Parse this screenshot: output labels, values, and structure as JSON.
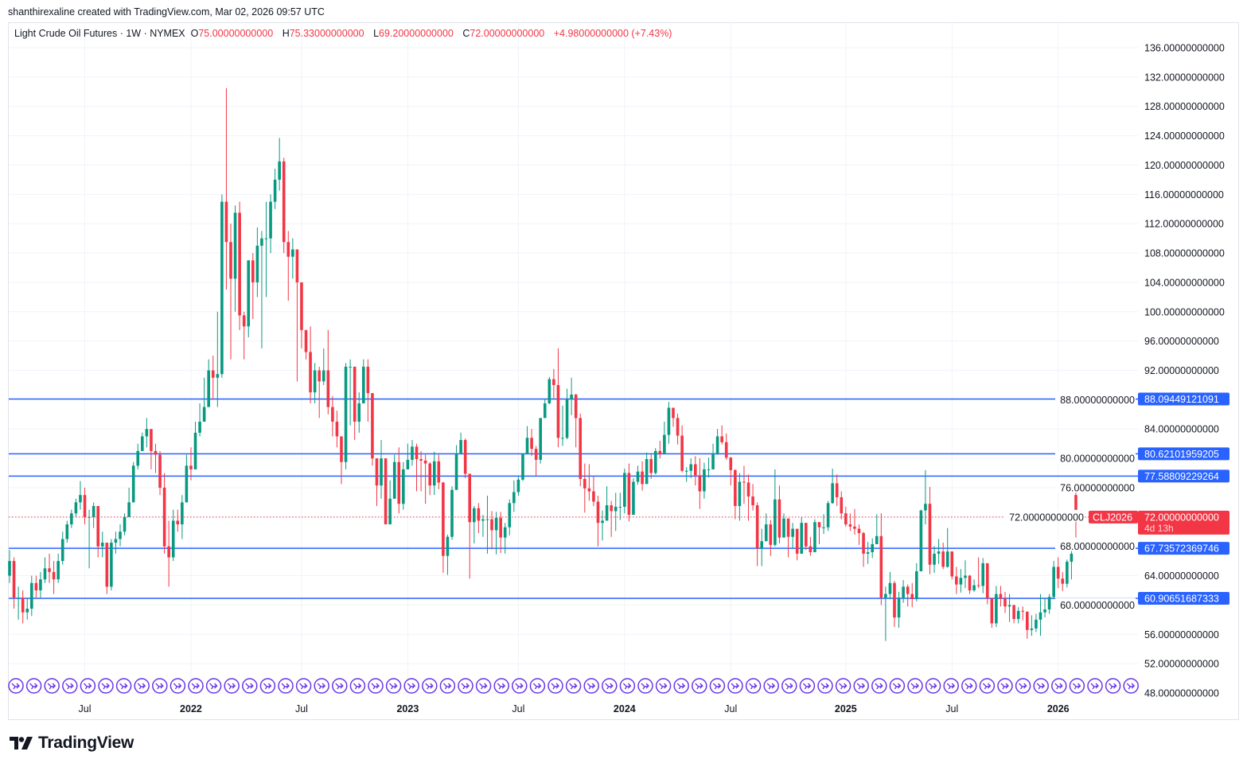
{
  "credit": "shanthirexaline created with TradingView.com, Mar 02, 2026 09:57 UTC",
  "legend": {
    "symbol": "Light Crude Oil Futures · 1W · NYMEX",
    "o_label": "O",
    "o": "75.00000000000",
    "h_label": "H",
    "h": "75.33000000000",
    "l_label": "L",
    "l": "69.20000000000",
    "c_label": "C",
    "c": "72.00000000000",
    "change": "+4.98000000000 (+7.43%)"
  },
  "logo": "TradingView",
  "colors": {
    "up": "#089981",
    "down": "#f23645",
    "level_line": "#2962ff",
    "rollover_icon": "#6a36e6",
    "grid": "#f0f3fa"
  },
  "chart_data": {
    "type": "candlestick",
    "interval": "1W",
    "ylim": [
      48,
      136
    ],
    "y_ticks": [
      "136.00000000000",
      "132.00000000000",
      "128.00000000000",
      "124.00000000000",
      "120.00000000000",
      "116.00000000000",
      "112.00000000000",
      "108.00000000000",
      "104.00000000000",
      "100.00000000000",
      "96.00000000000",
      "92.00000000000",
      "88.00000000000",
      "84.00000000000",
      "80.00000000000",
      "76.00000000000",
      "72.00000000000",
      "68.00000000000",
      "64.00000000000",
      "60.00000000000",
      "56.00000000000",
      "52.00000000000",
      "48.00000000000"
    ],
    "x_ticks": [
      {
        "label": "Jul",
        "week": 17,
        "bold": false
      },
      {
        "label": "2022",
        "week": 41,
        "bold": true
      },
      {
        "label": "Jul",
        "week": 66,
        "bold": false
      },
      {
        "label": "2023",
        "week": 90,
        "bold": true
      },
      {
        "label": "Jul",
        "week": 115,
        "bold": false
      },
      {
        "label": "2024",
        "week": 139,
        "bold": true
      },
      {
        "label": "Jul",
        "week": 163,
        "bold": false
      },
      {
        "label": "2025",
        "week": 189,
        "bold": true
      },
      {
        "label": "Jul",
        "week": 213,
        "bold": false
      },
      {
        "label": "2026",
        "week": 237,
        "bold": true
      }
    ],
    "horizontal_levels": [
      "88.09449121091",
      "80.62101959205",
      "77.58809229264",
      "67.73572369746",
      "60.90651687333"
    ],
    "last_price": {
      "value": "72.00000000000",
      "countdown": "4d 13h",
      "contract": "CLJ2026"
    },
    "candles_ohlc": [
      [
        64,
        67.5,
        63,
        66
      ],
      [
        66,
        66.5,
        59.5,
        61
      ],
      [
        61,
        62.5,
        58,
        61
      ],
      [
        61,
        62,
        57.5,
        59
      ],
      [
        59,
        61,
        58,
        59.5
      ],
      [
        59.5,
        64,
        58.5,
        63
      ],
      [
        63,
        64,
        61,
        62
      ],
      [
        62,
        64.5,
        61,
        63.5
      ],
      [
        63.5,
        66.5,
        63,
        65
      ],
      [
        65,
        67,
        63,
        64.5
      ],
      [
        64.5,
        66,
        61.5,
        63.5
      ],
      [
        63.5,
        67,
        63,
        66
      ],
      [
        66,
        70,
        65.5,
        69
      ],
      [
        69,
        71.5,
        68.5,
        71
      ],
      [
        71,
        73,
        70.5,
        72.5
      ],
      [
        72.5,
        74.5,
        72,
        74
      ],
      [
        74,
        76.9,
        73,
        75
      ],
      [
        75,
        76,
        71,
        72
      ],
      [
        72,
        73,
        65,
        72
      ],
      [
        72,
        74,
        70.5,
        73.5
      ],
      [
        73.5,
        73.5,
        66.5,
        68
      ],
      [
        68,
        70,
        66.5,
        68.5
      ],
      [
        68.5,
        68.5,
        61.5,
        62.5
      ],
      [
        62.5,
        69,
        62,
        68.5
      ],
      [
        68.5,
        70,
        67,
        69
      ],
      [
        69,
        71,
        68,
        70
      ],
      [
        70,
        72.5,
        69.5,
        72
      ],
      [
        72,
        76,
        72,
        74
      ],
      [
        74,
        79.5,
        74,
        79
      ],
      [
        79,
        82,
        78.5,
        81
      ],
      [
        81,
        83.5,
        81,
        83
      ],
      [
        83,
        85.5,
        81.5,
        84
      ],
      [
        84,
        84,
        78.5,
        81
      ],
      [
        81,
        82,
        78,
        80.5
      ],
      [
        80.5,
        81,
        75,
        76
      ],
      [
        76,
        78,
        67,
        68
      ],
      [
        68,
        71.5,
        62.5,
        66.5
      ],
      [
        66.5,
        73,
        66,
        71.5
      ],
      [
        71.5,
        73,
        70,
        71
      ],
      [
        71,
        75,
        69,
        74
      ],
      [
        74,
        80.5,
        74,
        79
      ],
      [
        79,
        81.5,
        77,
        78.5
      ],
      [
        78.5,
        85,
        79,
        83.5
      ],
      [
        83.5,
        87.5,
        83,
        85
      ],
      [
        85,
        91,
        86,
        87
      ],
      [
        87,
        93.5,
        87,
        92
      ],
      [
        92,
        94,
        88,
        91
      ],
      [
        91,
        100,
        87,
        91.5
      ],
      [
        91.5,
        116,
        91,
        115
      ],
      [
        115,
        130.5,
        103,
        109.5
      ],
      [
        109.5,
        112,
        93.5,
        104.5
      ],
      [
        104.5,
        114.5,
        100,
        113.5
      ],
      [
        113.5,
        115,
        97.5,
        99.5
      ],
      [
        99.5,
        100,
        93.5,
        98
      ],
      [
        98,
        107,
        96.5,
        107
      ],
      [
        107,
        108,
        99,
        104
      ],
      [
        104,
        111.5,
        102,
        109
      ],
      [
        109,
        111,
        95,
        110
      ],
      [
        110,
        115,
        102,
        110
      ],
      [
        110,
        116,
        108,
        115
      ],
      [
        115,
        119.5,
        114,
        118
      ],
      [
        118,
        123.7,
        116.5,
        120.5
      ],
      [
        120.5,
        121,
        108,
        109.5
      ],
      [
        109.5,
        111,
        101.5,
        107.5
      ],
      [
        107.5,
        110,
        104.5,
        108.5
      ],
      [
        108.5,
        108.5,
        90.5,
        104
      ],
      [
        104,
        104,
        95,
        97.5
      ],
      [
        97.5,
        97.5,
        93.5,
        94.5
      ],
      [
        94.5,
        98,
        87.5,
        89
      ],
      [
        89,
        93,
        87.5,
        92
      ],
      [
        92,
        92.5,
        85.5,
        90.5
      ],
      [
        90.5,
        95,
        90,
        92
      ],
      [
        92,
        97.5,
        86,
        87
      ],
      [
        87,
        88.5,
        83,
        85
      ],
      [
        85,
        86.5,
        81.5,
        83
      ],
      [
        83,
        82,
        76.5,
        79.5
      ],
      [
        79.5,
        93,
        78.5,
        92.5
      ],
      [
        92.5,
        93.5,
        84.5,
        92.5
      ],
      [
        92.5,
        89.5,
        82.5,
        85
      ],
      [
        85,
        89,
        83.5,
        87.5
      ],
      [
        87.5,
        93.5,
        87.5,
        92.5
      ],
      [
        92.5,
        93.5,
        85,
        88.9
      ],
      [
        88.9,
        88,
        79,
        80
      ],
      [
        80,
        80,
        73.5,
        76.3
      ],
      [
        76.3,
        82.5,
        74.5,
        80
      ],
      [
        80,
        80,
        71,
        71
      ],
      [
        71,
        77,
        72,
        74.5
      ],
      [
        74.5,
        80.5,
        75,
        79.5
      ],
      [
        79.5,
        81.5,
        72.5,
        73.8
      ],
      [
        73.8,
        79.5,
        73,
        78.5
      ],
      [
        78.5,
        82,
        78.5,
        79.8
      ],
      [
        79.8,
        82.5,
        79,
        81.6
      ],
      [
        81.6,
        82,
        75.5,
        79.9
      ],
      [
        79.9,
        81,
        75.5,
        79.7
      ],
      [
        79.7,
        80.5,
        73.8,
        79.3
      ],
      [
        79.3,
        79.5,
        75,
        76.3
      ],
      [
        76.3,
        80.9,
        75,
        79.6
      ],
      [
        79.6,
        80.5,
        75.8,
        76.7
      ],
      [
        76.7,
        76.8,
        64.4,
        66.7
      ],
      [
        66.7,
        69.6,
        64.1,
        69.3
      ],
      [
        69.3,
        76.2,
        68.9,
        75.7
      ],
      [
        75.7,
        81.8,
        78.3,
        80.7
      ],
      [
        80.7,
        83.5,
        80.8,
        82.5
      ],
      [
        82.5,
        82.7,
        77.3,
        77.9
      ],
      [
        77.9,
        77.9,
        63.6,
        71.3
      ],
      [
        71.3,
        73.5,
        68.4,
        73.2
      ],
      [
        73.2,
        73.9,
        69.8,
        71.5
      ],
      [
        71.5,
        72.3,
        69.3,
        71.7
      ],
      [
        71.7,
        74.9,
        67,
        71.7
      ],
      [
        71.7,
        72.8,
        67.6,
        70.2
      ],
      [
        70.2,
        72.7,
        66.9,
        71.9
      ],
      [
        71.9,
        72.7,
        67.1,
        69.2
      ],
      [
        69.2,
        71.2,
        67,
        70.6
      ],
      [
        70.6,
        74.4,
        69.5,
        73.9
      ],
      [
        73.9,
        77,
        72.7,
        75.4
      ],
      [
        75.4,
        77.5,
        74.9,
        77.1
      ],
      [
        77.1,
        80.7,
        76.9,
        80.6
      ],
      [
        80.6,
        84.4,
        80.6,
        82.8
      ],
      [
        82.8,
        84,
        80.3,
        81.3
      ],
      [
        81.3,
        81.7,
        77.6,
        79.8
      ],
      [
        79.8,
        85.5,
        79.3,
        85.5
      ],
      [
        85.5,
        88.1,
        85.5,
        87.5
      ],
      [
        87.5,
        91.1,
        87.4,
        90.8
      ],
      [
        90.8,
        92.2,
        88.2,
        90.0
      ],
      [
        90.0,
        95.0,
        81.5,
        82.8
      ],
      [
        82.8,
        87.2,
        81.7,
        82.8
      ],
      [
        82.8,
        89.5,
        82.6,
        88.1
      ],
      [
        88.1,
        91.0,
        85.9,
        88.7
      ],
      [
        88.7,
        88.8,
        81.5,
        85.5
      ],
      [
        85.5,
        86.1,
        76.2,
        77.2
      ],
      [
        77.2,
        79.3,
        72.6,
        75.9
      ],
      [
        75.9,
        79.2,
        74.2,
        75.5
      ],
      [
        75.5,
        77.6,
        73.5,
        74.1
      ],
      [
        74.1,
        74.9,
        68.0,
        71.2
      ],
      [
        71.2,
        72.9,
        68.8,
        71.5
      ],
      [
        71.5,
        76.2,
        71.5,
        73.6
      ],
      [
        73.6,
        74.2,
        69.3,
        72.8
      ],
      [
        72.8,
        75.3,
        70.1,
        73.4
      ],
      [
        73.4,
        75.3,
        71.6,
        73.4
      ],
      [
        73.4,
        78.6,
        72.5,
        78.0
      ],
      [
        78.0,
        79.3,
        71.4,
        72.3
      ],
      [
        72.3,
        77.3,
        72.5,
        76.8
      ],
      [
        76.8,
        79.0,
        76.4,
        78.2
      ],
      [
        78.2,
        79.6,
        75.6,
        76.5
      ],
      [
        76.5,
        80.8,
        76.9,
        79.9
      ],
      [
        79.9,
        80.6,
        77.2,
        78.0
      ],
      [
        78.0,
        81.4,
        77.8,
        81.0
      ],
      [
        81.0,
        82.4,
        80.0,
        80.6
      ],
      [
        80.6,
        85.0,
        80.7,
        83.2
      ],
      [
        83.2,
        87.7,
        82.0,
        86.9
      ],
      [
        86.9,
        86.7,
        84.3,
        85.5
      ],
      [
        85.5,
        86.1,
        81.9,
        83.1
      ],
      [
        83.1,
        84.5,
        78.1,
        78.3
      ],
      [
        78.3,
        78.8,
        76.8,
        78.3
      ],
      [
        78.3,
        80.0,
        77.3,
        79.2
      ],
      [
        79.2,
        80.3,
        76.3,
        77.7
      ],
      [
        77.7,
        80.0,
        73.1,
        75.5
      ],
      [
        75.5,
        79.4,
        74.5,
        78.5
      ],
      [
        78.5,
        80.1,
        77.4,
        78.5
      ],
      [
        78.5,
        82.0,
        78.9,
        80.7
      ],
      [
        80.7,
        84.0,
        80.5,
        83.0
      ],
      [
        83.0,
        84.5,
        81.9,
        82.2
      ],
      [
        82.2,
        83.4,
        79.8,
        80.1
      ],
      [
        80.1,
        80.2,
        76.3,
        78.4
      ],
      [
        78.4,
        78.5,
        71.7,
        73.5
      ],
      [
        73.5,
        78.0,
        71.5,
        76.8
      ],
      [
        76.8,
        79.0,
        73.8,
        76.7
      ],
      [
        76.7,
        77.8,
        71.5,
        74.8
      ],
      [
        74.8,
        76.5,
        72.9,
        73.6
      ],
      [
        73.6,
        74.0,
        65.3,
        67.7
      ],
      [
        67.7,
        70.4,
        65.3,
        68.7
      ],
      [
        68.7,
        72.5,
        69.1,
        71.0
      ],
      [
        71.0,
        71.6,
        66.7,
        68.2
      ],
      [
        68.2,
        78.5,
        68.0,
        74.4
      ],
      [
        74.4,
        76.3,
        68.4,
        69.2
      ],
      [
        69.2,
        72.5,
        69.5,
        71.8
      ],
      [
        71.8,
        71.3,
        66.5,
        69.3
      ],
      [
        69.3,
        71.2,
        67.8,
        70.4
      ],
      [
        70.4,
        69.7,
        66.1,
        67.0
      ],
      [
        67.0,
        72.0,
        67.0,
        71.2
      ],
      [
        71.2,
        71.0,
        67.5,
        68.0
      ],
      [
        68.0,
        69.3,
        66.7,
        67.2
      ],
      [
        67.2,
        71.7,
        67.7,
        71.3
      ],
      [
        71.3,
        71.0,
        68.3,
        70.6
      ],
      [
        70.6,
        72.4,
        69.7,
        70.6
      ],
      [
        70.6,
        74.2,
        70.1,
        73.9
      ],
      [
        73.9,
        78.6,
        73.8,
        76.6
      ],
      [
        76.6,
        77.8,
        73.5,
        74.7
      ],
      [
        74.7,
        75.5,
        71.7,
        72.5
      ],
      [
        72.5,
        73.4,
        70.7,
        71.0
      ],
      [
        71.0,
        72.5,
        70.1,
        70.7
      ],
      [
        70.7,
        73.1,
        69.6,
        70.4
      ],
      [
        70.4,
        71.0,
        68.2,
        69.8
      ],
      [
        69.8,
        70.0,
        65.2,
        67.0
      ],
      [
        67.0,
        68.6,
        65.6,
        67.2
      ],
      [
        67.2,
        69.1,
        66.4,
        68.3
      ],
      [
        68.3,
        72.4,
        68.3,
        69.4
      ],
      [
        69.4,
        72.5,
        60.0,
        61.0
      ],
      [
        61.0,
        62.5,
        55.1,
        61.5
      ],
      [
        61.5,
        64.5,
        60.8,
        63.0
      ],
      [
        63.0,
        63.3,
        57.0,
        58.3
      ],
      [
        58.3,
        61.8,
        56.9,
        61.0
      ],
      [
        61.0,
        63.4,
        60.3,
        62.5
      ],
      [
        62.5,
        62.8,
        59.8,
        61.5
      ],
      [
        61.5,
        63.0,
        59.7,
        60.8
      ],
      [
        60.8,
        65.7,
        60.5,
        64.6
      ],
      [
        64.6,
        73.0,
        64.6,
        72.9
      ],
      [
        72.9,
        78.4,
        71.0,
        73.8
      ],
      [
        73.8,
        76.1,
        64.2,
        65.5
      ],
      [
        65.5,
        68.0,
        64.4,
        67.0
      ],
      [
        67.0,
        69.0,
        65.6,
        67.3
      ],
      [
        67.3,
        68.5,
        64.9,
        65.2
      ],
      [
        65.2,
        70.5,
        65.1,
        67.3
      ],
      [
        67.3,
        67.3,
        63.5,
        63.9
      ],
      [
        63.9,
        65.2,
        61.5,
        62.8
      ],
      [
        62.8,
        64.9,
        61.7,
        63.7
      ],
      [
        63.7,
        66.1,
        62.3,
        64.0
      ],
      [
        64.0,
        64.1,
        61.5,
        62.0
      ],
      [
        62.0,
        63.5,
        61.8,
        62.7
      ],
      [
        62.7,
        66.5,
        62.3,
        62.6
      ],
      [
        62.6,
        66.4,
        61.6,
        65.7
      ],
      [
        65.7,
        63.1,
        60.1,
        60.9
      ],
      [
        60.9,
        60.9,
        56.9,
        57.5
      ],
      [
        57.5,
        62.6,
        57.0,
        61.5
      ],
      [
        61.5,
        62.6,
        59.8,
        60.9
      ],
      [
        60.9,
        61.8,
        58.9,
        59.8
      ],
      [
        59.8,
        61.5,
        57.7,
        60.0
      ],
      [
        60.0,
        59.7,
        57.5,
        58.1
      ],
      [
        58.1,
        59.7,
        57.5,
        59.2
      ],
      [
        59.2,
        59.8,
        57.9,
        59.1
      ],
      [
        59.1,
        58.5,
        55.4,
        56.6
      ],
      [
        56.6,
        58.6,
        55.8,
        56.8
      ],
      [
        56.8,
        58.8,
        56.3,
        58.0
      ],
      [
        58.0,
        61.5,
        55.8,
        59.0
      ],
      [
        59.0,
        60.9,
        58.3,
        59.4
      ],
      [
        59.4,
        61.5,
        58.8,
        61.1
      ],
      [
        61.1,
        66.0,
        61.0,
        65.2
      ],
      [
        65.2,
        66.5,
        62.3,
        63.6
      ],
      [
        63.6,
        64.5,
        61.9,
        62.9
      ],
      [
        62.9,
        66.2,
        62.4,
        65.9
      ],
      [
        65.9,
        67.7,
        63.5,
        67.0
      ],
      [
        75.0,
        75.33,
        69.2,
        72.0
      ]
    ]
  }
}
